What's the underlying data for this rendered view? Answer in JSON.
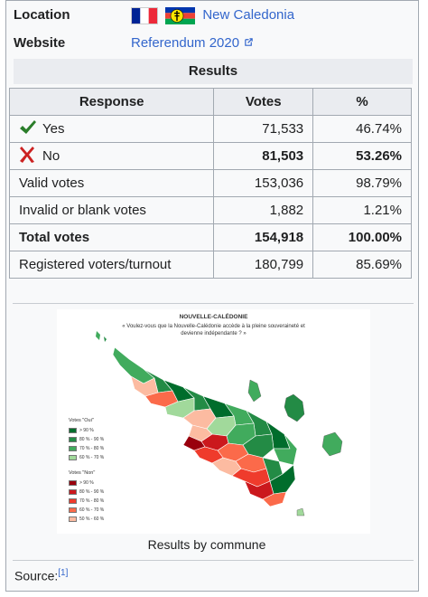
{
  "infobox": {
    "location_label": "Location",
    "location_value": "New Caledonia",
    "website_label": "Website",
    "website_value": "Referendum 2020",
    "results_header": "Results"
  },
  "table": {
    "headers": [
      "Response",
      "Votes",
      "%"
    ],
    "rows": [
      {
        "response": "Yes",
        "votes": "71,533",
        "pct": "46.74%"
      },
      {
        "response": "No",
        "votes": "81,503",
        "pct": "53.26%"
      },
      {
        "response": "Valid votes",
        "votes": "153,036",
        "pct": "98.79%"
      },
      {
        "response": "Invalid or blank votes",
        "votes": "1,882",
        "pct": "1.21%"
      },
      {
        "response": "Total votes",
        "votes": "154,918",
        "pct": "100.00%"
      },
      {
        "response": "Registered voters/turnout",
        "votes": "180,799",
        "pct": "85.69%"
      }
    ]
  },
  "map": {
    "title": "NOUVELLE-CALÉDONIE",
    "subtitle": "« Voulez-vous que la Nouvelle-Calédonie accède à la pleine souveraineté et devienne indépendante ? »",
    "legend_oui_title": "Votes \"Oui\"",
    "legend_oui": [
      {
        "label": "> 90 %",
        "color": "#006d2c"
      },
      {
        "label": "80 % - 90 %",
        "color": "#238b45"
      },
      {
        "label": "70 % - 80 %",
        "color": "#41ab5d"
      },
      {
        "label": "60 % - 70 %",
        "color": "#a1d99b"
      }
    ],
    "legend_non_title": "Votes \"Non\"",
    "legend_non": [
      {
        "label": "> 90 %",
        "color": "#99000d"
      },
      {
        "label": "80 % - 90 %",
        "color": "#cb181d"
      },
      {
        "label": "70 % - 80 %",
        "color": "#ef3b2c"
      },
      {
        "label": "60 % - 70 %",
        "color": "#fb6a4a"
      },
      {
        "label": "50 % - 60 %",
        "color": "#fcbba1"
      }
    ]
  },
  "caption": "Results by commune",
  "source_label": "Source:",
  "source_ref": "[1]"
}
